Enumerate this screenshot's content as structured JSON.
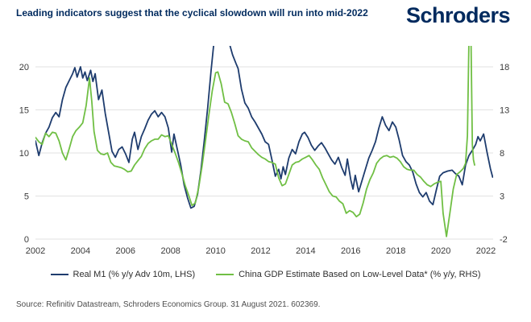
{
  "header": {
    "title": "Leading indicators suggest that the cyclical slowdown will run into mid-2022",
    "brand": "Schroders"
  },
  "source": "Source: Refinitiv Datastream, Schroders Economics Group. 31 August 2021. 602369.",
  "colors": {
    "brand_navy": "#002a5e",
    "line_blue": "#1e3c6e",
    "line_green": "#70bf44",
    "gridline": "#e2e2e2",
    "axis_text": "#3a3a3a"
  },
  "chart_data": {
    "type": "line",
    "grid": true,
    "legend_position": "bottom",
    "x_ticks": [
      2002,
      2004,
      2006,
      2008,
      2010,
      2012,
      2014,
      2016,
      2018,
      2020,
      2022
    ],
    "x_range": [
      2002,
      2022.35
    ],
    "left_axis": {
      "ticks": [
        0,
        5,
        10,
        15,
        20
      ],
      "range": [
        0,
        20
      ]
    },
    "right_axis": {
      "ticks": [
        -2,
        3,
        8,
        13,
        18
      ],
      "range": [
        -2,
        18
      ]
    },
    "series": [
      {
        "name": "Real M1 (% y/y Adv 10m, LHS)",
        "axis": "left",
        "color": "#1e3c6e",
        "points": [
          [
            2002.0,
            11.4
          ],
          [
            2002.15,
            9.7
          ],
          [
            2002.3,
            11.2
          ],
          [
            2002.45,
            12.3
          ],
          [
            2002.6,
            13.0
          ],
          [
            2002.75,
            14.1
          ],
          [
            2002.9,
            14.7
          ],
          [
            2003.05,
            14.2
          ],
          [
            2003.2,
            16.2
          ],
          [
            2003.35,
            17.6
          ],
          [
            2003.5,
            18.4
          ],
          [
            2003.65,
            19.2
          ],
          [
            2003.75,
            19.9
          ],
          [
            2003.85,
            18.8
          ],
          [
            2004.0,
            20.0
          ],
          [
            2004.1,
            18.7
          ],
          [
            2004.2,
            19.4
          ],
          [
            2004.3,
            18.4
          ],
          [
            2004.45,
            19.6
          ],
          [
            2004.55,
            18.3
          ],
          [
            2004.65,
            19.2
          ],
          [
            2004.8,
            16.2
          ],
          [
            2004.95,
            17.3
          ],
          [
            2005.1,
            14.6
          ],
          [
            2005.25,
            12.4
          ],
          [
            2005.4,
            10.2
          ],
          [
            2005.55,
            9.5
          ],
          [
            2005.7,
            10.4
          ],
          [
            2005.85,
            10.7
          ],
          [
            2006.0,
            9.9
          ],
          [
            2006.15,
            8.9
          ],
          [
            2006.3,
            11.6
          ],
          [
            2006.4,
            12.4
          ],
          [
            2006.55,
            10.4
          ],
          [
            2006.7,
            11.9
          ],
          [
            2006.85,
            12.8
          ],
          [
            2007.0,
            13.8
          ],
          [
            2007.15,
            14.5
          ],
          [
            2007.3,
            14.9
          ],
          [
            2007.45,
            14.2
          ],
          [
            2007.6,
            14.7
          ],
          [
            2007.75,
            14.2
          ],
          [
            2007.9,
            12.9
          ],
          [
            2008.05,
            10.1
          ],
          [
            2008.15,
            12.2
          ],
          [
            2008.3,
            10.4
          ],
          [
            2008.45,
            8.6
          ],
          [
            2008.6,
            6.3
          ],
          [
            2008.75,
            4.8
          ],
          [
            2008.9,
            3.6
          ],
          [
            2009.05,
            3.8
          ],
          [
            2009.2,
            5.2
          ],
          [
            2009.35,
            8.0
          ],
          [
            2009.5,
            11.5
          ],
          [
            2009.65,
            15.3
          ],
          [
            2009.8,
            19.6
          ],
          [
            2009.95,
            23.5
          ],
          [
            2010.15,
            25.5
          ],
          [
            2010.4,
            25.5
          ],
          [
            2010.6,
            22.8
          ],
          [
            2010.75,
            21.4
          ],
          [
            2010.9,
            20.4
          ],
          [
            2011.0,
            19.8
          ],
          [
            2011.15,
            17.4
          ],
          [
            2011.3,
            15.8
          ],
          [
            2011.45,
            15.2
          ],
          [
            2011.6,
            14.2
          ],
          [
            2011.75,
            13.6
          ],
          [
            2011.9,
            12.9
          ],
          [
            2012.05,
            12.2
          ],
          [
            2012.2,
            11.3
          ],
          [
            2012.35,
            11.0
          ],
          [
            2012.5,
            9.2
          ],
          [
            2012.65,
            7.3
          ],
          [
            2012.8,
            8.1
          ],
          [
            2012.9,
            7.0
          ],
          [
            2013.0,
            8.4
          ],
          [
            2013.1,
            7.5
          ],
          [
            2013.25,
            9.4
          ],
          [
            2013.4,
            10.4
          ],
          [
            2013.55,
            9.9
          ],
          [
            2013.7,
            11.3
          ],
          [
            2013.85,
            12.2
          ],
          [
            2013.95,
            12.4
          ],
          [
            2014.1,
            11.8
          ],
          [
            2014.25,
            10.9
          ],
          [
            2014.4,
            10.3
          ],
          [
            2014.55,
            10.8
          ],
          [
            2014.7,
            11.2
          ],
          [
            2014.85,
            10.6
          ],
          [
            2015.0,
            9.9
          ],
          [
            2015.15,
            9.2
          ],
          [
            2015.3,
            8.7
          ],
          [
            2015.45,
            9.5
          ],
          [
            2015.6,
            8.3
          ],
          [
            2015.75,
            7.4
          ],
          [
            2015.85,
            9.3
          ],
          [
            2016.0,
            6.9
          ],
          [
            2016.1,
            5.8
          ],
          [
            2016.2,
            7.4
          ],
          [
            2016.35,
            5.5
          ],
          [
            2016.5,
            6.8
          ],
          [
            2016.65,
            8.1
          ],
          [
            2016.8,
            9.4
          ],
          [
            2016.95,
            10.3
          ],
          [
            2017.1,
            11.3
          ],
          [
            2017.25,
            12.9
          ],
          [
            2017.4,
            14.2
          ],
          [
            2017.55,
            13.2
          ],
          [
            2017.7,
            12.6
          ],
          [
            2017.85,
            13.6
          ],
          [
            2018.0,
            13.0
          ],
          [
            2018.15,
            11.5
          ],
          [
            2018.3,
            9.7
          ],
          [
            2018.45,
            9.0
          ],
          [
            2018.6,
            8.6
          ],
          [
            2018.75,
            7.8
          ],
          [
            2018.9,
            6.4
          ],
          [
            2019.05,
            5.4
          ],
          [
            2019.2,
            4.9
          ],
          [
            2019.35,
            5.4
          ],
          [
            2019.5,
            4.4
          ],
          [
            2019.65,
            4.0
          ],
          [
            2019.8,
            5.7
          ],
          [
            2019.95,
            7.3
          ],
          [
            2020.1,
            7.7
          ],
          [
            2020.3,
            7.9
          ],
          [
            2020.5,
            8.0
          ],
          [
            2020.65,
            7.6
          ],
          [
            2020.8,
            7.3
          ],
          [
            2020.95,
            6.3
          ],
          [
            2021.1,
            8.6
          ],
          [
            2021.25,
            9.7
          ],
          [
            2021.4,
            10.3
          ],
          [
            2021.55,
            11.0
          ],
          [
            2021.65,
            11.9
          ],
          [
            2021.75,
            11.4
          ],
          [
            2021.9,
            12.2
          ],
          [
            2022.05,
            10.1
          ],
          [
            2022.2,
            8.2
          ],
          [
            2022.3,
            7.2
          ]
        ]
      },
      {
        "name": "China GDP Estimate Based on Low-Level Data* (% y/y, RHS)",
        "axis": "right",
        "color": "#70bf44",
        "points": [
          [
            2002.0,
            9.8
          ],
          [
            2002.15,
            9.3
          ],
          [
            2002.3,
            9.0
          ],
          [
            2002.45,
            10.3
          ],
          [
            2002.6,
            9.9
          ],
          [
            2002.75,
            10.4
          ],
          [
            2002.9,
            10.3
          ],
          [
            2003.05,
            9.4
          ],
          [
            2003.2,
            8.0
          ],
          [
            2003.35,
            7.2
          ],
          [
            2003.5,
            8.5
          ],
          [
            2003.65,
            9.9
          ],
          [
            2003.8,
            10.6
          ],
          [
            2003.95,
            11.0
          ],
          [
            2004.1,
            11.5
          ],
          [
            2004.25,
            13.5
          ],
          [
            2004.4,
            16.7
          ],
          [
            2004.5,
            14.0
          ],
          [
            2004.6,
            10.5
          ],
          [
            2004.75,
            8.3
          ],
          [
            2004.9,
            7.9
          ],
          [
            2005.05,
            7.8
          ],
          [
            2005.2,
            8.0
          ],
          [
            2005.35,
            6.9
          ],
          [
            2005.5,
            6.5
          ],
          [
            2005.65,
            6.4
          ],
          [
            2005.8,
            6.3
          ],
          [
            2005.95,
            6.1
          ],
          [
            2006.1,
            5.8
          ],
          [
            2006.25,
            5.9
          ],
          [
            2006.4,
            6.6
          ],
          [
            2006.55,
            7.1
          ],
          [
            2006.7,
            7.6
          ],
          [
            2006.85,
            8.5
          ],
          [
            2007.0,
            9.1
          ],
          [
            2007.15,
            9.4
          ],
          [
            2007.3,
            9.6
          ],
          [
            2007.45,
            9.6
          ],
          [
            2007.6,
            10.1
          ],
          [
            2007.75,
            9.9
          ],
          [
            2007.9,
            10.0
          ],
          [
            2008.05,
            9.0
          ],
          [
            2008.2,
            8.0
          ],
          [
            2008.35,
            6.9
          ],
          [
            2008.5,
            5.6
          ],
          [
            2008.65,
            4.2
          ],
          [
            2008.8,
            3.1
          ],
          [
            2008.95,
            1.9
          ],
          [
            2009.1,
            2.2
          ],
          [
            2009.25,
            4.0
          ],
          [
            2009.4,
            6.5
          ],
          [
            2009.55,
            9.4
          ],
          [
            2009.7,
            12.4
          ],
          [
            2009.85,
            15.2
          ],
          [
            2010.0,
            17.3
          ],
          [
            2010.1,
            17.4
          ],
          [
            2010.25,
            16.0
          ],
          [
            2010.4,
            13.9
          ],
          [
            2010.55,
            13.7
          ],
          [
            2010.7,
            12.7
          ],
          [
            2010.85,
            11.4
          ],
          [
            2011.0,
            10.0
          ],
          [
            2011.15,
            9.6
          ],
          [
            2011.3,
            9.4
          ],
          [
            2011.45,
            9.3
          ],
          [
            2011.6,
            8.6
          ],
          [
            2011.75,
            8.2
          ],
          [
            2011.9,
            7.8
          ],
          [
            2012.05,
            7.5
          ],
          [
            2012.2,
            7.3
          ],
          [
            2012.35,
            7.0
          ],
          [
            2012.5,
            6.9
          ],
          [
            2012.65,
            6.7
          ],
          [
            2012.8,
            5.1
          ],
          [
            2012.95,
            4.2
          ],
          [
            2013.1,
            4.4
          ],
          [
            2013.25,
            5.5
          ],
          [
            2013.4,
            6.6
          ],
          [
            2013.55,
            6.9
          ],
          [
            2013.7,
            7.0
          ],
          [
            2013.85,
            7.3
          ],
          [
            2014.0,
            7.5
          ],
          [
            2014.15,
            7.7
          ],
          [
            2014.3,
            7.2
          ],
          [
            2014.45,
            6.6
          ],
          [
            2014.6,
            6.1
          ],
          [
            2014.75,
            5.1
          ],
          [
            2014.9,
            4.3
          ],
          [
            2015.05,
            3.5
          ],
          [
            2015.2,
            3.0
          ],
          [
            2015.35,
            2.9
          ],
          [
            2015.5,
            2.4
          ],
          [
            2015.65,
            2.1
          ],
          [
            2015.8,
            1.0
          ],
          [
            2015.95,
            1.3
          ],
          [
            2016.1,
            1.1
          ],
          [
            2016.25,
            0.6
          ],
          [
            2016.4,
            0.9
          ],
          [
            2016.55,
            2.2
          ],
          [
            2016.7,
            3.8
          ],
          [
            2016.85,
            4.9
          ],
          [
            2017.0,
            5.7
          ],
          [
            2017.15,
            6.8
          ],
          [
            2017.3,
            7.3
          ],
          [
            2017.45,
            7.6
          ],
          [
            2017.6,
            7.7
          ],
          [
            2017.75,
            7.5
          ],
          [
            2017.9,
            7.6
          ],
          [
            2018.05,
            7.4
          ],
          [
            2018.2,
            7.0
          ],
          [
            2018.35,
            6.4
          ],
          [
            2018.5,
            6.1
          ],
          [
            2018.65,
            6.0
          ],
          [
            2018.8,
            6.0
          ],
          [
            2018.95,
            5.5
          ],
          [
            2019.1,
            5.2
          ],
          [
            2019.25,
            4.7
          ],
          [
            2019.4,
            4.3
          ],
          [
            2019.55,
            4.1
          ],
          [
            2019.7,
            4.4
          ],
          [
            2019.85,
            4.6
          ],
          [
            2020.0,
            4.7
          ],
          [
            2020.1,
            1.0
          ],
          [
            2020.25,
            -1.7
          ],
          [
            2020.4,
            1.0
          ],
          [
            2020.55,
            3.8
          ],
          [
            2020.7,
            5.5
          ],
          [
            2020.85,
            5.8
          ],
          [
            2021.0,
            6.2
          ],
          [
            2021.1,
            6.8
          ],
          [
            2021.18,
            10.0
          ],
          [
            2021.26,
            23.0
          ],
          [
            2021.33,
            23.0
          ],
          [
            2021.4,
            9.0
          ],
          [
            2021.45,
            7.2
          ],
          [
            2021.5,
            6.6
          ]
        ]
      }
    ]
  }
}
